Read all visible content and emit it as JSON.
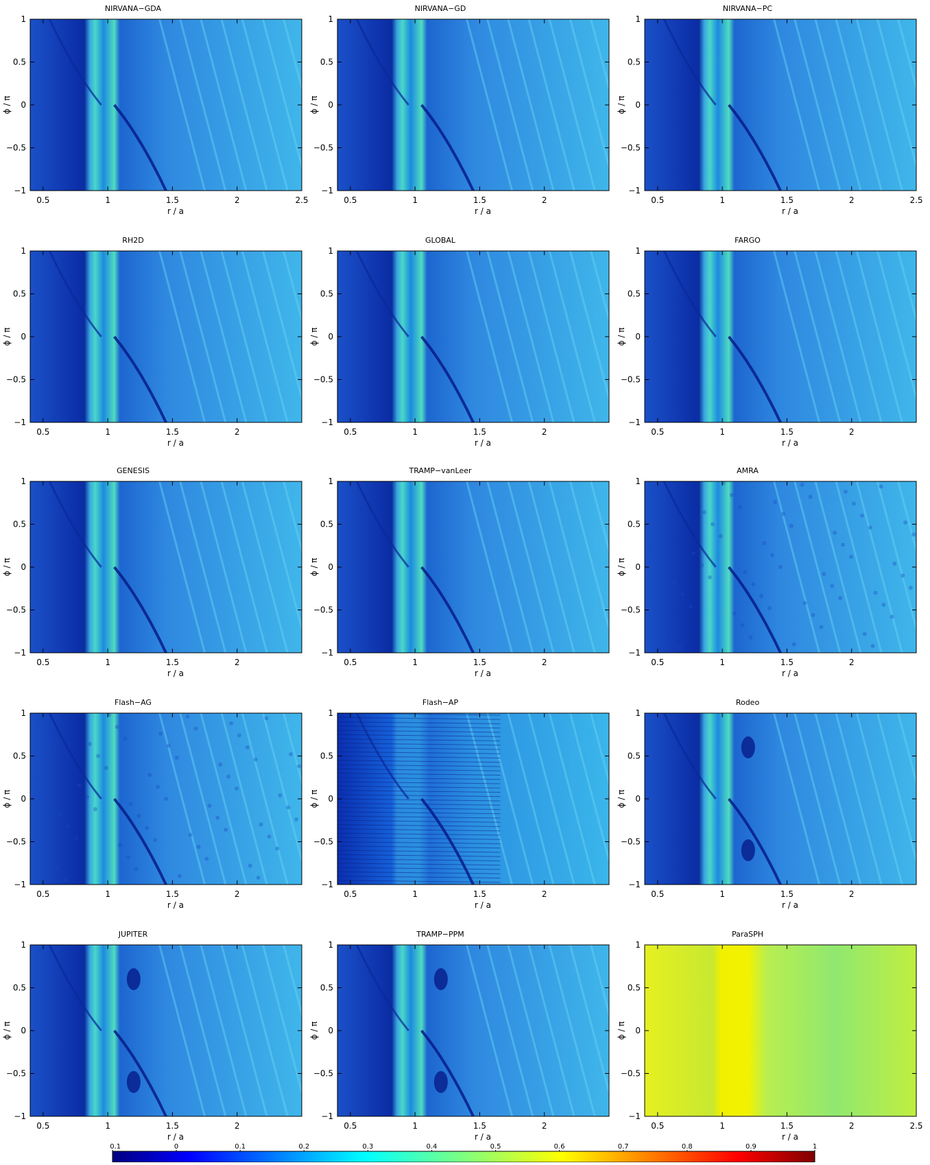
{
  "chart_data": {
    "type": "heatmap",
    "xlabel": "r / a",
    "ylabel": "ϕ / π",
    "ylim": [
      -1,
      1
    ],
    "y_ticks": [
      "1",
      "0.5",
      "0",
      "−0.5",
      "−1"
    ],
    "panels": [
      {
        "title": "NIRVANA−GDA",
        "xlim": [
          0.4,
          2.5
        ],
        "x_ticks": [
          "0.5",
          "1",
          "1.5",
          "2",
          "2.5"
        ],
        "style": "smooth"
      },
      {
        "title": "NIRVANA−GD",
        "xlim": [
          0.4,
          2.5
        ],
        "x_ticks": [
          "0.5",
          "1",
          "1.5",
          "2"
        ],
        "style": "smooth"
      },
      {
        "title": "NIRVANA−PC",
        "xlim": [
          0.4,
          2.5
        ],
        "x_ticks": [
          "0.5",
          "1",
          "1.5",
          "2",
          "2.5"
        ],
        "style": "smooth"
      },
      {
        "title": "RH2D",
        "xlim": [
          0.4,
          2.5
        ],
        "x_ticks": [
          "0.5",
          "1",
          "1.5",
          "2"
        ],
        "style": "smooth"
      },
      {
        "title": "GLOBAL",
        "xlim": [
          0.4,
          2.5
        ],
        "x_ticks": [
          "0.5",
          "1",
          "1.5",
          "2"
        ],
        "style": "smooth"
      },
      {
        "title": "FARGO",
        "xlim": [
          0.4,
          2.5
        ],
        "x_ticks": [
          "0.5",
          "1",
          "1.5",
          "2"
        ],
        "style": "smooth"
      },
      {
        "title": "GENESIS",
        "xlim": [
          0.4,
          2.5
        ],
        "x_ticks": [
          "0.5",
          "1",
          "1.5",
          "2"
        ],
        "style": "smooth"
      },
      {
        "title": "TRAMP−vanLeer",
        "xlim": [
          0.4,
          2.5
        ],
        "x_ticks": [
          "0.5",
          "1",
          "1.5",
          "2"
        ],
        "style": "smooth"
      },
      {
        "title": "AMRA",
        "xlim": [
          0.4,
          2.5
        ],
        "x_ticks": [
          "0.5",
          "1",
          "1.5",
          "2"
        ],
        "style": "noisy"
      },
      {
        "title": "Flash−AG",
        "xlim": [
          0.4,
          2.5
        ],
        "x_ticks": [
          "0.5",
          "1",
          "1.5",
          "2"
        ],
        "style": "noisy"
      },
      {
        "title": "Flash−AP",
        "xlim": [
          0.4,
          2.5
        ],
        "x_ticks": [
          "0.5",
          "1",
          "1.5",
          "2"
        ],
        "style": "stripes"
      },
      {
        "title": "Rodeo",
        "xlim": [
          0.4,
          2.5
        ],
        "x_ticks": [
          "0.5",
          "1",
          "1.5",
          "2"
        ],
        "style": "blob"
      },
      {
        "title": "JUPITER",
        "xlim": [
          0.4,
          2.5
        ],
        "x_ticks": [
          "0.5",
          "1",
          "1.5",
          "2"
        ],
        "style": "blob"
      },
      {
        "title": "TRAMP−PPM",
        "xlim": [
          0.4,
          2.5
        ],
        "x_ticks": [
          "0.5",
          "1",
          "1.5",
          "2"
        ],
        "style": "blob"
      },
      {
        "title": "ParaSPH",
        "xlim": [
          0.4,
          2.5
        ],
        "x_ticks": [
          "0.5",
          "1",
          "1.5",
          "2",
          "2.5"
        ],
        "style": "yellow"
      }
    ],
    "colorbar": {
      "min": -0.1,
      "max": 1,
      "ticks": [
        "−0.1",
        "0",
        "0.1",
        "0.2",
        "0.3",
        "0.4",
        "0.5",
        "0.6",
        "0.7",
        "0.8",
        "0.9",
        "1"
      ]
    }
  }
}
